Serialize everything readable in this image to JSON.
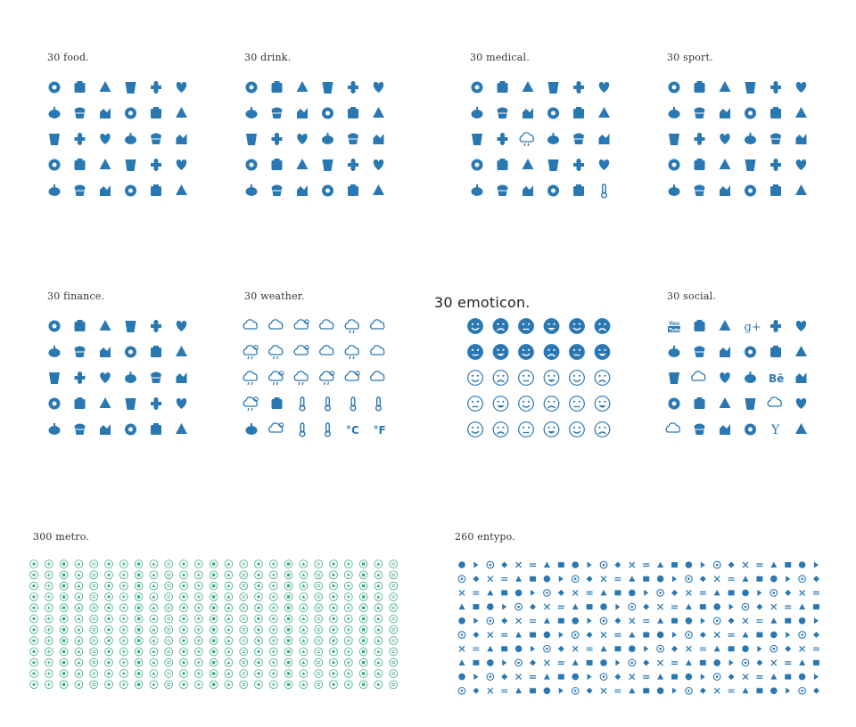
{
  "accent_color": "#2a78b2",
  "metro_color": "#3aa88a",
  "icon_sets": {
    "food": {
      "title": "30 food.",
      "icons": [
        "grapes-icon",
        "beet-icon",
        "carrot-icon",
        "chili-icon",
        "mushroom-icon",
        "pepper-icon",
        "cheese-icon",
        "croissant-icon",
        "pizza-slice-icon",
        "fish-icon",
        "watermelon-icon",
        "bread-icon",
        "chicken-icon",
        "ham-icon",
        "macaron-icon",
        "pear-icon",
        "crown-cake-icon",
        "salad-bowl-icon",
        "popcorn-icon",
        "dinner-plate-icon",
        "noodle-bowl-icon",
        "donut-icon",
        "cupcake-icon",
        "pretzel-icon",
        "burger-icon",
        "lollipop-icon",
        "toast-icon",
        "pie-icon",
        "cake-slice-icon",
        "cooking-pot-icon"
      ]
    },
    "drink": {
      "title": "30 drink.",
      "icons": [
        "cup-straw-icon",
        "glass-icon",
        "soda-cup-icon",
        "paper-cup-icon",
        "tumbler-icon",
        "cocktail-icon",
        "wine-glass-icon",
        "red-wine-icon",
        "bottle-icon",
        "juice-icon",
        "bottle-glass-icon",
        "coconut-drink-icon",
        "tropical-drink-icon",
        "fancy-cocktail-icon",
        "martini-icon",
        "bucket-bottles-icon",
        "champagne-icon",
        "flask-icon",
        "beer-bottles-icon",
        "watering-can-icon",
        "teapot-icon",
        "milk-bottle-icon",
        "soda-bottle-icon",
        "ice-bucket-icon",
        "ice-pop-icon",
        "takeaway-cup-icon",
        "ice-cream-cone-icon",
        "cone-scoop-icon",
        "ice-cream-icon",
        "beer-mug-icon"
      ]
    },
    "medical": {
      "title": "30 medical.",
      "icons": [
        "pill-bottle-icon",
        "medicine-jar-icon",
        "mortar-icon",
        "hospital-icon",
        "hourglass-icon",
        "capsule-icon",
        "molecule-icon",
        "heartbeat-icon",
        "nurse-cap-icon",
        "heart-ecg-icon",
        "blood-drops-icon",
        "atom-molecule-icon",
        "magnifier-icon",
        "tooth-icon",
        "brain-icon",
        "hand-icon",
        "blood-drop-icon",
        "stethoscope-icon",
        "eye-icon",
        "wheelchair-icon",
        "patient-icon",
        "syringe-icon",
        "dropper-icon",
        "pharmacy-cart-icon",
        "male-icon",
        "female-icon",
        "atom-icon",
        "first-aid-kit-icon",
        "lab-flask-icon",
        "thermometer-icon"
      ]
    },
    "sport": {
      "title": "30 sport.",
      "icons": [
        "steering-wheel-icon",
        "bowling-icon",
        "football-icon",
        "golf-icon",
        "volleyball-icon",
        "boxes-icon",
        "hockey-stick-icon",
        "court-icon",
        "race-flags-icon",
        "baseball-bats-icon",
        "bicycle-icon",
        "tactics-icon",
        "rugby-ball-icon",
        "trophy-icon",
        "bottle-icon",
        "hockey-icon",
        "stopwatch-icon",
        "target-icon",
        "speedometer-icon",
        "ping-pong-icon",
        "soccer-ball-icon",
        "pill-icon",
        "shuttlecock-icon",
        "torch-icon",
        "tennis-icon",
        "medal-icon",
        "finish-line-icon",
        "heartbeat-icon",
        "dumbbell-icon",
        "basketball-hoop-icon"
      ]
    },
    "finance": {
      "title": "30 finance.",
      "icons": [
        "bank-icon",
        "calendar-icon",
        "money-bag-icon",
        "scales-icon",
        "gavel-icon",
        "trend-up-icon",
        "globe-icon",
        "bill-icon",
        "bar-chart-icon",
        "report-icon",
        "diamond-icon",
        "pie-chart-icon",
        "target-icon",
        "exchange-icon",
        "stacked-bars-icon",
        "calculator-icon",
        "monitor-chart-icon",
        "trash-icon",
        "unlock-icon",
        "dollar-coin-icon",
        "world-map-icon",
        "grid-icon",
        "shield-icon",
        "documents-icon",
        "lock-icon",
        "credit-card-icon",
        "gears-icon",
        "lightbulb-icon",
        "register-icon",
        "search-icon"
      ]
    },
    "weather": {
      "title": "30 weather.",
      "icons": [
        "cloud-icon",
        "cloud-filled-icon",
        "partly-sunny-icon",
        "cloud-moon-icon",
        "cloud-rain-icon",
        "wind-cloud-icon",
        "sun-cloud-rain-icon",
        "storm-icon",
        "sun-cloud-icon",
        "moon-cloud-icon",
        "snow-cloud-icon",
        "cloud-wind-icon",
        "lightning-cloud-icon",
        "sun-lightning-icon",
        "cloud-hail-icon",
        "sun-snow-icon",
        "sun-icon",
        "cloud-arrow-icon",
        "sunny-rain-icon",
        "compass-icon",
        "thermometer-icon",
        "thermometer-icon",
        "thermometer-icon",
        "thermometer-icon",
        "umbrella-icon",
        "sunglasses-icon",
        "thermometer-high-icon",
        "thermometer-low-icon",
        "celsius-icon",
        "fahrenheit-icon"
      ],
      "labels": {
        "celsius": "°C",
        "fahrenheit": "°F"
      }
    },
    "emoticon": {
      "title": "30 emoticon.",
      "icons": [
        "smile-filled-icon",
        "grin-filled-icon",
        "happy-filled-icon",
        "laugh-filled-icon",
        "sad-filled-icon",
        "wink-filled-icon",
        "angry-filled-icon",
        "neutral-filled-icon",
        "tongue-filled-icon",
        "love-filled-icon",
        "frown-filled-icon",
        "sleepy-filled-icon",
        "dizzy-icon",
        "smile-icon",
        "happy-icon",
        "angry-icon",
        "smile-icon",
        "tongue-icon",
        "grin-icon",
        "sad-icon",
        "cry-icon",
        "frown-icon",
        "laugh-icon",
        "wink-icon",
        "neutral-icon",
        "neutral-icon",
        "grimace-icon",
        "sad-icon",
        "smirk-icon",
        "frown-icon"
      ]
    },
    "social": {
      "title": "30 social.",
      "icons": [
        "youtube-icon",
        "artsy-icon",
        "rss-icon",
        "google-plus-icon",
        "vimeo-icon",
        "facebook-icon",
        "app-store-icon",
        "tumblr-icon",
        "instagram-icon",
        "pinterest-icon",
        "paypal-icon",
        "dribbble-icon",
        "dropbox-icon",
        "cloud-sync-icon",
        "linkedin-icon",
        "twitter-icon",
        "behance-icon",
        "skype-icon",
        "youtube-play-icon",
        "pinterest-icon",
        "apple-icon",
        "picasa-icon",
        "windows-icon",
        "android-icon",
        "soundcloud-icon",
        "stack-icon",
        "wordpress-icon",
        "google-drive-icon",
        "yahoo-icon",
        "dribbble-icon"
      ],
      "labels": {
        "youtube_a": "You",
        "youtube_b": "Tube",
        "google_plus": "g+",
        "behance": "Bē",
        "yahoo": "Y"
      }
    },
    "metro": {
      "title": "300 metro.",
      "count": 300,
      "columns": 25,
      "rows": 12
    },
    "entypo": {
      "title": "260 entypo.",
      "count": 260,
      "columns": 26,
      "rows": 10
    }
  }
}
